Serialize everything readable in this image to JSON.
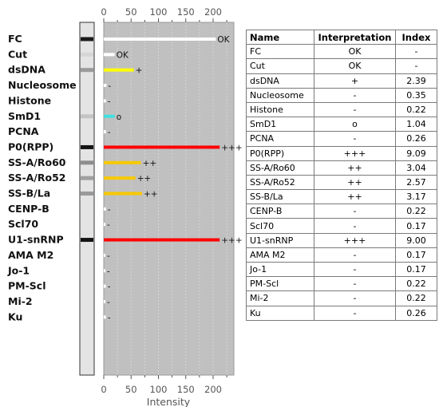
{
  "chart_data": {
    "type": "bar",
    "orientation": "horizontal",
    "xlabel": "Intensity",
    "xlim": [
      0,
      240
    ],
    "xticks": [
      0,
      50,
      100,
      150,
      200
    ],
    "grid": true,
    "categories": [
      "FC",
      "Cut",
      "dsDNA",
      "Nucleosome",
      "Histone",
      "SmD1",
      "PCNA",
      "P0(RPP)",
      "SS-A/Ro60",
      "SS-A/Ro52",
      "SS-B/La",
      "CENP-B",
      "Scl70",
      "U1-snRNP",
      "AMA M2",
      "Jo-1",
      "PM-Scl",
      "Mi-2",
      "Ku"
    ],
    "values": [
      205,
      20,
      55,
      5,
      4,
      20,
      4,
      212,
      68,
      58,
      70,
      4,
      3,
      212,
      3,
      3,
      4,
      3,
      4
    ],
    "bar_labels": [
      "OK",
      "OK",
      "+",
      "-",
      "-",
      "o",
      "-",
      "+++",
      "++",
      "++",
      "++",
      "-",
      "-",
      "+++",
      "-",
      "-",
      "-",
      "-",
      "-"
    ],
    "bar_colors": [
      "#ffffff",
      "#ffffff",
      "#ffff00",
      "#ffffff",
      "#ffffff",
      "#40e0e0",
      "#ffffff",
      "#ff0000",
      "#f7c900",
      "#f7c900",
      "#f7c900",
      "#ffffff",
      "#ffffff",
      "#ff0000",
      "#ffffff",
      "#ffffff",
      "#ffffff",
      "#ffffff",
      "#ffffff"
    ],
    "plot_background": "#c0c0c0",
    "strip_bands": [
      {
        "index": 0,
        "shade": "#1a1a1a"
      },
      {
        "index": 1,
        "shade": "#d6d6d6"
      },
      {
        "index": 2,
        "shade": "#9a9a9a"
      },
      {
        "index": 5,
        "shade": "#c4c4c4"
      },
      {
        "index": 7,
        "shade": "#151515"
      },
      {
        "index": 8,
        "shade": "#8e8e8e"
      },
      {
        "index": 9,
        "shade": "#a0a0a0"
      },
      {
        "index": 10,
        "shade": "#9a9a9a"
      },
      {
        "index": 13,
        "shade": "#151515"
      }
    ]
  },
  "table": {
    "headers": {
      "name": "Name",
      "interpretation": "Interpretation",
      "index": "Index"
    },
    "rows": [
      {
        "name": "FC",
        "interpretation": "OK",
        "index": "-"
      },
      {
        "name": "Cut",
        "interpretation": "OK",
        "index": "-"
      },
      {
        "name": "dsDNA",
        "interpretation": "+",
        "index": "2.39"
      },
      {
        "name": "Nucleosome",
        "interpretation": "-",
        "index": "0.35"
      },
      {
        "name": "Histone",
        "interpretation": "-",
        "index": "0.22"
      },
      {
        "name": "SmD1",
        "interpretation": "o",
        "index": "1.04"
      },
      {
        "name": "PCNA",
        "interpretation": "-",
        "index": "0.26"
      },
      {
        "name": "P0(RPP)",
        "interpretation": "+++",
        "index": "9.09"
      },
      {
        "name": "SS-A/Ro60",
        "interpretation": "++",
        "index": "3.04"
      },
      {
        "name": "SS-A/Ro52",
        "interpretation": "++",
        "index": "2.57"
      },
      {
        "name": "SS-B/La",
        "interpretation": "++",
        "index": "3.17"
      },
      {
        "name": "CENP-B",
        "interpretation": "-",
        "index": "0.22"
      },
      {
        "name": "Scl70",
        "interpretation": "-",
        "index": "0.17"
      },
      {
        "name": "U1-snRNP",
        "interpretation": "+++",
        "index": "9.00"
      },
      {
        "name": "AMA M2",
        "interpretation": "-",
        "index": "0.17"
      },
      {
        "name": "Jo-1",
        "interpretation": "-",
        "index": "0.17"
      },
      {
        "name": "PM-Scl",
        "interpretation": "-",
        "index": "0.22"
      },
      {
        "name": "Mi-2",
        "interpretation": "-",
        "index": "0.22"
      },
      {
        "name": "Ku",
        "interpretation": "-",
        "index": "0.26"
      }
    ]
  }
}
